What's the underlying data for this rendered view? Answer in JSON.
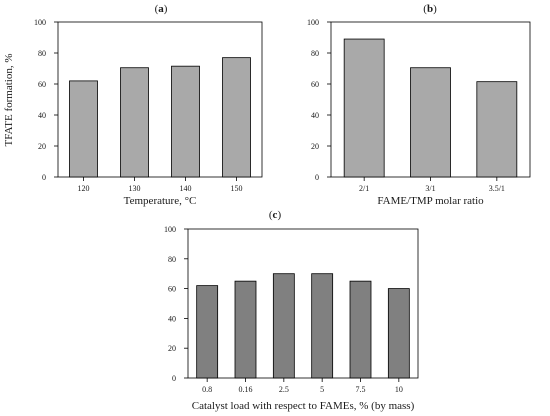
{
  "figure": {
    "y_axis_label": "TFATE formation, %"
  },
  "chart_data": [
    {
      "panel": "a",
      "type": "bar",
      "xlabel": "Temperature, °C",
      "ylim": [
        0,
        100
      ],
      "yticks": [
        0,
        20,
        40,
        60,
        80,
        100
      ],
      "categories": [
        "120",
        "130",
        "140",
        "150"
      ],
      "values": [
        62,
        70.5,
        71.5,
        77
      ],
      "bar_color": "#a9a9a9"
    },
    {
      "panel": "b",
      "type": "bar",
      "xlabel": "FAME/TMP molar ratio",
      "ylim": [
        0,
        100
      ],
      "yticks": [
        0,
        20,
        40,
        60,
        80,
        100
      ],
      "categories": [
        "2/1",
        "3/1",
        "3.5/1"
      ],
      "values": [
        89,
        70.5,
        61.5
      ],
      "bar_color": "#a9a9a9"
    },
    {
      "panel": "c",
      "type": "bar",
      "xlabel": "Catalyst load with respect to FAMEs, % (by mass)",
      "ylim": [
        0,
        100
      ],
      "yticks": [
        0,
        20,
        40,
        60,
        80,
        100
      ],
      "categories": [
        "0.8",
        "0.16",
        "2.5",
        "5",
        "7.5",
        "10"
      ],
      "values": [
        62,
        65,
        70,
        70,
        65,
        60
      ],
      "bar_color": "#808080"
    }
  ]
}
